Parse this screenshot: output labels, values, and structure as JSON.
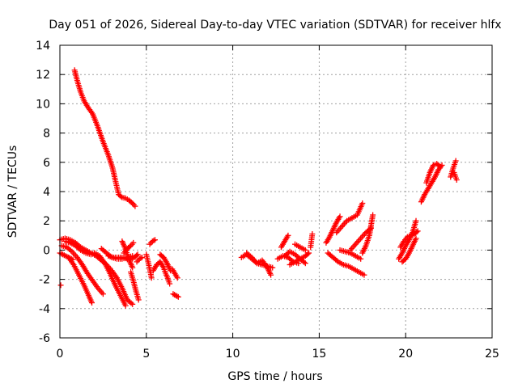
{
  "chart_data": {
    "type": "scatter",
    "title": "Day 051 of 2026, Sidereal Day-to-day VTEC variation (SDTVAR) for receiver hlfx",
    "xlabel": "GPS time / hours",
    "ylabel": "SDTVAR / TECUs",
    "xlim": [
      0,
      25
    ],
    "ylim": [
      -6,
      14
    ],
    "xticks": [
      "0",
      "5",
      "10",
      "15",
      "20",
      "25"
    ],
    "yticks": [
      "-6",
      "-4",
      "-2",
      "0",
      "2",
      "4",
      "6",
      "8",
      "10",
      "12",
      "14"
    ],
    "grid": true,
    "marker": "+",
    "marker_color": "#ff0000",
    "tracks": [
      {
        "x": [
          0.85,
          1.0,
          1.2,
          1.4,
          1.6,
          1.9,
          2.2,
          2.5,
          2.8,
          3.05,
          3.2,
          3.4,
          3.6,
          3.8,
          4.0,
          4.2,
          4.35
        ],
        "y": [
          12.3,
          11.6,
          10.8,
          10.2,
          9.8,
          9.3,
          8.4,
          7.4,
          6.5,
          5.6,
          4.8,
          3.8,
          3.6,
          3.55,
          3.4,
          3.2,
          3.0
        ]
      },
      {
        "x": [
          0.0,
          0.3,
          0.6,
          0.9,
          1.2,
          1.5,
          1.8,
          2.1,
          2.4,
          2.7,
          3.0,
          3.3,
          3.6,
          3.9,
          4.2
        ],
        "y": [
          0.7,
          0.8,
          0.7,
          0.5,
          0.2,
          0.0,
          -0.2,
          -0.4,
          -0.7,
          -1.0,
          -1.4,
          -1.9,
          -2.6,
          -3.4,
          -3.7
        ]
      },
      {
        "x": [
          0.1,
          0.4,
          0.7,
          1.0,
          1.3,
          1.6,
          1.9,
          2.2,
          2.5
        ],
        "y": [
          0.3,
          0.2,
          -0.1,
          -0.5,
          -1.0,
          -1.6,
          -2.1,
          -2.6,
          -3.0
        ]
      },
      {
        "x": [
          0.5,
          0.8,
          1.1,
          1.4,
          1.7,
          1.85
        ],
        "y": [
          -0.5,
          -1.0,
          -1.7,
          -2.4,
          -3.2,
          -3.6
        ]
      },
      {
        "x": [
          0.0,
          0.25,
          0.5,
          0.75
        ],
        "y": [
          -0.2,
          -0.35,
          -0.5,
          -0.65
        ]
      },
      {
        "x": [
          0.3,
          0.6,
          0.9,
          1.2,
          1.5,
          1.8,
          2.0
        ],
        "y": [
          0.6,
          0.5,
          0.3,
          0.0,
          -0.2,
          -0.3,
          -0.2
        ]
      },
      {
        "x": [
          2.0,
          2.3,
          2.6,
          2.9,
          3.2,
          3.5,
          3.8
        ],
        "y": [
          -0.2,
          -0.4,
          -0.9,
          -1.6,
          -2.4,
          -3.1,
          -3.8
        ]
      },
      {
        "x": [
          2.4,
          2.7,
          3.0,
          3.3,
          3.6,
          3.9,
          4.2
        ],
        "y": [
          0.1,
          -0.2,
          -0.5,
          -0.6,
          -0.6,
          -0.5,
          -0.4
        ]
      },
      {
        "x": [
          2.8,
          3.1,
          3.4,
          3.7,
          4.0,
          4.3,
          4.5
        ],
        "y": [
          -0.4,
          -0.5,
          -0.5,
          -0.5,
          -0.7,
          -0.5,
          -0.3
        ]
      },
      {
        "x": [
          3.6,
          3.75,
          3.9,
          4.05,
          4.2
        ],
        "y": [
          0.6,
          0.2,
          -0.3,
          -0.8,
          -1.2
        ]
      },
      {
        "x": [
          3.7,
          3.9,
          4.1,
          4.25
        ],
        "y": [
          -0.2,
          0.1,
          0.3,
          0.5
        ]
      },
      {
        "x": [
          4.1,
          4.25,
          4.4,
          4.55
        ],
        "y": [
          -1.5,
          -2.1,
          -2.8,
          -3.4
        ]
      },
      {
        "x": [
          4.45,
          4.6,
          4.75
        ],
        "y": [
          -0.8,
          -0.6,
          -0.5
        ]
      },
      {
        "x": [
          5.0,
          5.1,
          5.2,
          5.3
        ],
        "y": [
          -0.3,
          -0.8,
          -1.3,
          -1.9
        ]
      },
      {
        "x": [
          5.4,
          5.6,
          5.8,
          6.0,
          6.15
        ],
        "y": [
          -1.4,
          -1.0,
          -0.8,
          -1.2,
          -1.7
        ]
      },
      {
        "x": [
          5.2,
          5.35,
          5.5
        ],
        "y": [
          0.4,
          0.6,
          0.7
        ]
      },
      {
        "x": [
          5.8,
          6.0,
          6.2,
          6.4
        ],
        "y": [
          -0.3,
          -0.5,
          -0.9,
          -1.4
        ]
      },
      {
        "x": [
          6.2,
          6.35
        ],
        "y": [
          -1.8,
          -2.3
        ]
      },
      {
        "x": [
          6.5,
          6.65,
          6.8
        ],
        "y": [
          -1.3,
          -1.6,
          -1.9
        ]
      },
      {
        "x": [
          6.55,
          6.7,
          6.85
        ],
        "y": [
          -3.0,
          -3.1,
          -3.2
        ]
      },
      {
        "x": [
          10.5,
          10.8,
          11.1,
          11.4,
          11.7,
          12.0,
          12.2
        ],
        "y": [
          -0.5,
          -0.3,
          -0.6,
          -0.9,
          -0.7,
          -1.2,
          -1.7
        ]
      },
      {
        "x": [
          10.8,
          11.1,
          11.4,
          11.7,
          12.0,
          12.3
        ],
        "y": [
          -0.2,
          -0.5,
          -0.9,
          -1.0,
          -1.1,
          -1.2
        ]
      },
      {
        "x": [
          12.6,
          12.9,
          13.2,
          13.5,
          13.8
        ],
        "y": [
          -0.6,
          -0.4,
          -0.5,
          -0.8,
          -0.9
        ]
      },
      {
        "x": [
          12.8,
          13.0,
          13.2
        ],
        "y": [
          0.2,
          0.6,
          1.0
        ]
      },
      {
        "x": [
          13.0,
          13.3,
          13.6,
          13.9,
          14.2,
          14.4
        ],
        "y": [
          -0.4,
          -0.1,
          -0.3,
          -0.6,
          -0.4,
          -0.2
        ]
      },
      {
        "x": [
          13.3,
          13.6,
          13.9,
          14.2
        ],
        "y": [
          -1.0,
          -0.8,
          -0.6,
          -0.9
        ]
      },
      {
        "x": [
          13.6,
          13.9,
          14.2
        ],
        "y": [
          0.4,
          0.2,
          0.0
        ]
      },
      {
        "x": [
          14.5,
          14.6
        ],
        "y": [
          0.2,
          1.1
        ]
      },
      {
        "x": [
          15.4,
          15.6,
          15.8,
          16.0,
          16.2
        ],
        "y": [
          0.5,
          0.9,
          1.4,
          1.9,
          2.3
        ]
      },
      {
        "x": [
          15.5,
          15.8,
          16.1,
          16.4,
          16.7,
          17.0,
          17.3,
          17.6
        ],
        "y": [
          -0.2,
          -0.5,
          -0.8,
          -1.0,
          -1.1,
          -1.3,
          -1.5,
          -1.7
        ]
      },
      {
        "x": [
          16.0,
          16.3,
          16.6,
          16.9,
          17.2,
          17.5
        ],
        "y": [
          1.2,
          1.6,
          2.0,
          2.2,
          2.4,
          3.2
        ]
      },
      {
        "x": [
          16.2,
          16.5,
          16.8,
          17.1,
          17.4
        ],
        "y": [
          0.0,
          -0.1,
          -0.2,
          -0.4,
          -0.6
        ]
      },
      {
        "x": [
          16.8,
          17.1,
          17.4,
          17.7,
          18.0
        ],
        "y": [
          0.0,
          0.4,
          0.8,
          1.2,
          1.5
        ]
      },
      {
        "x": [
          17.5,
          17.7,
          17.9,
          18.1
        ],
        "y": [
          -0.2,
          0.3,
          1.0,
          2.4
        ]
      },
      {
        "x": [
          19.6,
          19.8,
          20.0,
          20.2,
          20.4,
          20.6
        ],
        "y": [
          -0.6,
          -0.2,
          0.3,
          0.7,
          1.2,
          2.0
        ]
      },
      {
        "x": [
          19.7,
          19.9,
          20.1,
          20.3,
          20.5,
          20.7
        ],
        "y": [
          0.2,
          0.6,
          0.9,
          1.0,
          1.1,
          1.3
        ]
      },
      {
        "x": [
          19.8,
          20.0,
          20.2,
          20.4,
          20.6
        ],
        "y": [
          -0.8,
          -0.6,
          -0.2,
          0.3,
          0.8
        ]
      },
      {
        "x": [
          20.9,
          21.1,
          21.3,
          21.5,
          21.7,
          21.9,
          22.1
        ],
        "y": [
          3.3,
          3.8,
          4.2,
          4.6,
          5.0,
          5.5,
          5.8
        ]
      },
      {
        "x": [
          21.2,
          21.4,
          21.6,
          21.8,
          22.0
        ],
        "y": [
          4.6,
          5.3,
          5.8,
          5.9,
          5.7
        ]
      },
      {
        "x": [
          22.6,
          22.75,
          22.9
        ],
        "y": [
          5.0,
          5.6,
          6.1
        ]
      },
      {
        "x": [
          22.8,
          22.95
        ],
        "y": [
          5.3,
          4.8
        ]
      },
      {
        "x": [
          0.05
        ],
        "y": [
          -2.4
        ]
      }
    ]
  }
}
